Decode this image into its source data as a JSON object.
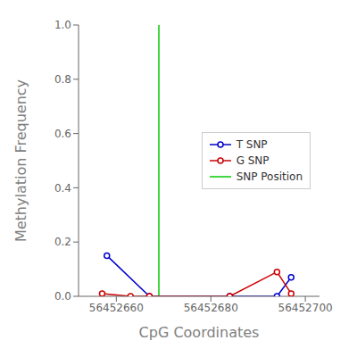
{
  "chart_data": {
    "type": "line",
    "xlabel": "CpG Coordinates",
    "ylabel": "Methylation Frequency",
    "series": [
      {
        "name": "T SNP",
        "color": "#0000cc",
        "marker": "circle",
        "x": [
          56452658,
          56452667,
          56452684,
          56452694,
          56452697
        ],
        "values": [
          0.15,
          0.0,
          0.0,
          0.0,
          0.07
        ]
      },
      {
        "name": "G SNP",
        "color": "#cc0000",
        "marker": "circle",
        "x": [
          56452657,
          56452663,
          56452667,
          56452684,
          56452694,
          56452697
        ],
        "values": [
          0.01,
          0.0,
          0.0,
          0.0,
          0.09,
          0.01
        ]
      }
    ],
    "reference_lines": [
      {
        "name": "SNP Position",
        "x": 56452669,
        "color": "#00cc00"
      }
    ],
    "xlim": [
      56452652,
      56452703
    ],
    "xticks": [
      56452660,
      56452680,
      56452700
    ],
    "ylim": [
      0,
      1
    ],
    "yticks": [
      {
        "value": 0,
        "label": "0.0"
      },
      {
        "value": 0.2,
        "label": "0.2"
      },
      {
        "value": 0.4,
        "label": "0.4"
      },
      {
        "value": 0.6,
        "label": "0.6"
      },
      {
        "value": 0.8,
        "label": "0.8"
      },
      {
        "value": 1,
        "label": "1.0"
      }
    ],
    "legend": "center right"
  }
}
